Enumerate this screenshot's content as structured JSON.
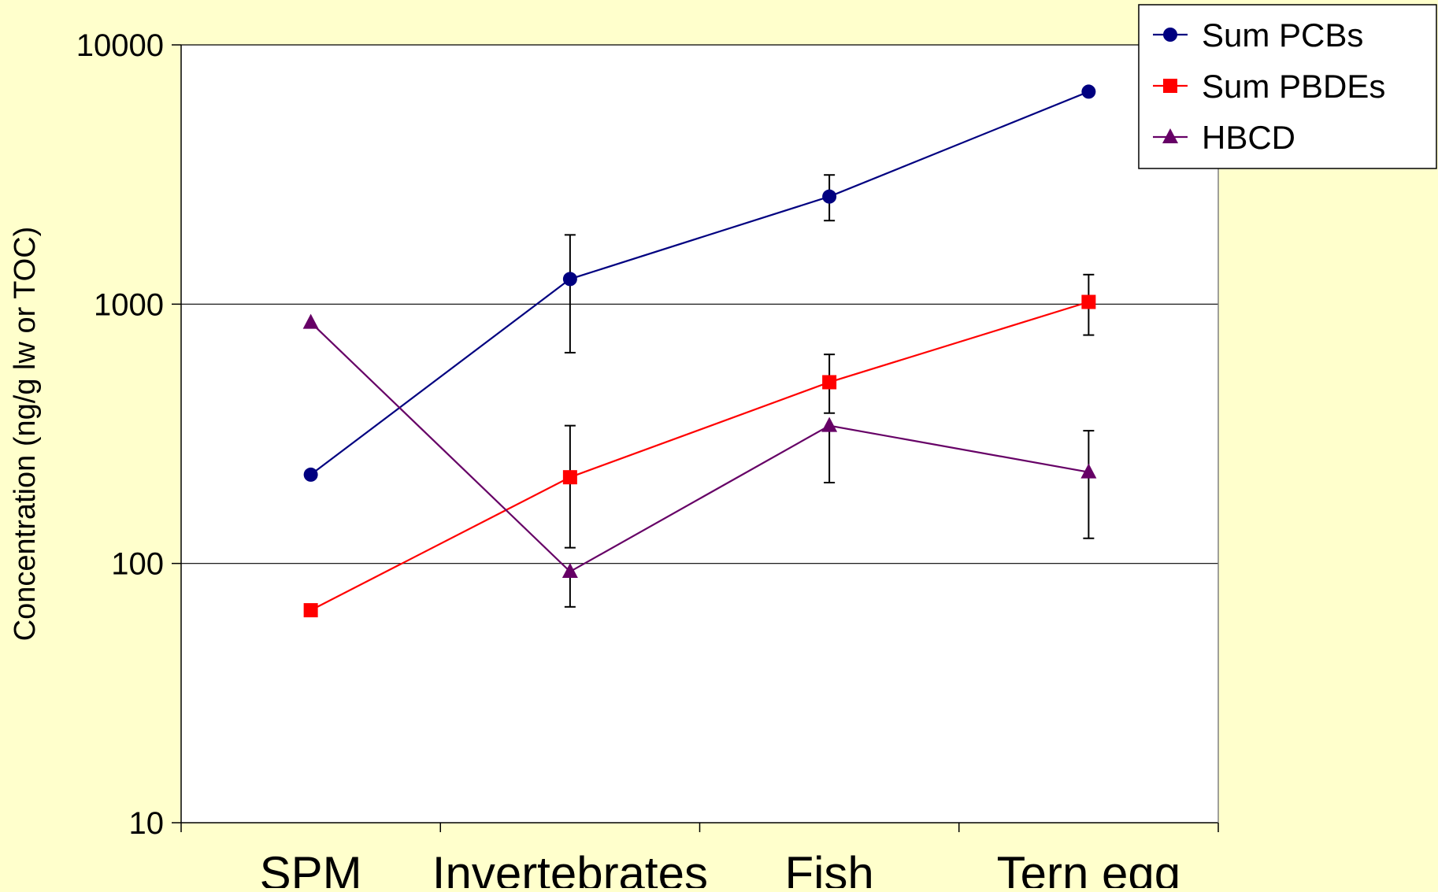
{
  "chart_data": {
    "type": "line",
    "title": "",
    "xlabel": "",
    "ylabel": "Concentration (ng/g lw or TOC)",
    "yscale": "log",
    "ylim": [
      10,
      10000
    ],
    "yticks": [
      "10",
      "100",
      "1000",
      "10000"
    ],
    "grid": "horizontal",
    "legend_position": "top-right",
    "background": "#FFFFCC",
    "plot_background": "#FFFFFF",
    "categories": [
      "SPM",
      "Invertebrates",
      "Fish",
      "Tern egg"
    ],
    "series": [
      {
        "name": "Sum PCBs",
        "color": "#000080",
        "marker": "circle",
        "values": [
          220,
          1250,
          2600,
          6600
        ],
        "error_low": [
          null,
          650,
          2100,
          null
        ],
        "error_high": [
          null,
          1850,
          3150,
          null
        ]
      },
      {
        "name": "Sum PBDEs",
        "color": "#FF0000",
        "marker": "square",
        "values": [
          66,
          215,
          500,
          1020
        ],
        "error_low": [
          null,
          115,
          380,
          760
        ],
        "error_high": [
          null,
          340,
          640,
          1300
        ]
      },
      {
        "name": "HBCD",
        "color": "#660066",
        "marker": "triangle",
        "values": [
          850,
          93,
          340,
          225
        ],
        "error_low": [
          null,
          68,
          205,
          125
        ],
        "error_high": [
          null,
          null,
          null,
          325
        ]
      }
    ]
  }
}
